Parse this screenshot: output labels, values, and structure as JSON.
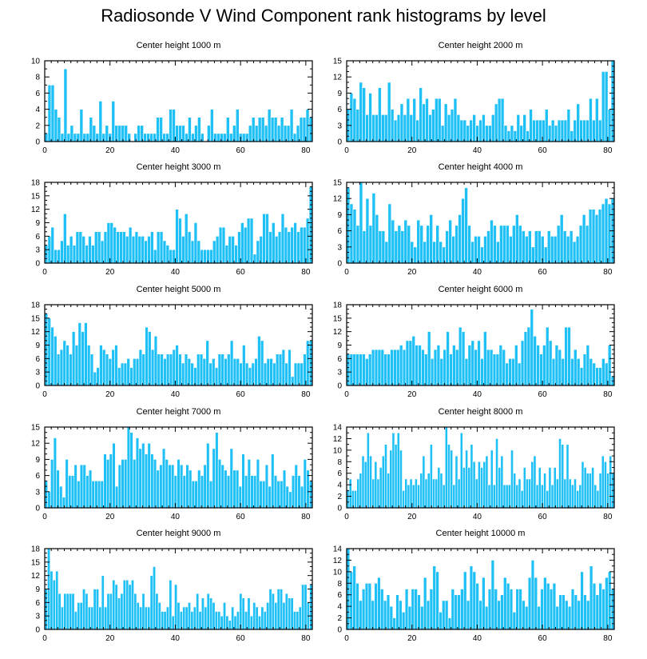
{
  "title": "Radiosonde V Wind Component rank histograms by level",
  "colors": {
    "bar": "#1ec0f5",
    "bar_edge": "#ffffff",
    "frame": "#000000",
    "background": "#ffffff"
  },
  "chart_data": [
    {
      "type": "bar",
      "title": "Center height 1000 m",
      "xlim": [
        0,
        82
      ],
      "ylim": [
        0,
        10
      ],
      "xticks": [
        0,
        20,
        40,
        60,
        80
      ],
      "yticks": [
        0,
        2,
        4,
        6,
        8,
        10
      ],
      "values": [
        1,
        7,
        7,
        4,
        3,
        1,
        9,
        1,
        2,
        1,
        1,
        4,
        1,
        1,
        3,
        2,
        1,
        5,
        1,
        2,
        1,
        5,
        2,
        2,
        2,
        2,
        1,
        0,
        1,
        2,
        2,
        1,
        1,
        1,
        1,
        3,
        3,
        1,
        1,
        4,
        4,
        2,
        2,
        2,
        1,
        3,
        1,
        2,
        3,
        1,
        0,
        2,
        4,
        1,
        1,
        1,
        1,
        3,
        1,
        2,
        4,
        1,
        1,
        1,
        2,
        3,
        2,
        3,
        3,
        2,
        4,
        3,
        3,
        2,
        3,
        2,
        2,
        4,
        1,
        2,
        3,
        3,
        4,
        3
      ],
      "grid": false,
      "legend": "none"
    },
    {
      "type": "bar",
      "title": "Center height 2000 m",
      "xlim": [
        0,
        82
      ],
      "ylim": [
        0,
        15
      ],
      "xticks": [
        0,
        20,
        40,
        60,
        80
      ],
      "yticks": [
        0,
        3,
        6,
        9,
        12,
        15
      ],
      "values": [
        6,
        9,
        8,
        6,
        11,
        10,
        5,
        9,
        5,
        5,
        10,
        5,
        5,
        11,
        6,
        4,
        5,
        7,
        5,
        8,
        5,
        8,
        4,
        10,
        7,
        8,
        5,
        6,
        8,
        8,
        3,
        7,
        5,
        6,
        8,
        5,
        4,
        4,
        3,
        4,
        5,
        3,
        4,
        5,
        3,
        3,
        5,
        7,
        8,
        8,
        3,
        2,
        3,
        2,
        5,
        3,
        5,
        2,
        6,
        4,
        4,
        4,
        4,
        6,
        3,
        4,
        3,
        4,
        4,
        4,
        6,
        2,
        4,
        7,
        4,
        4,
        4,
        8,
        4,
        8,
        4,
        13,
        13,
        6,
        15
      ],
      "grid": false,
      "legend": "none"
    },
    {
      "type": "bar",
      "title": "Center height 3000 m",
      "xlim": [
        0,
        82
      ],
      "ylim": [
        0,
        18
      ],
      "xticks": [
        0,
        20,
        40,
        60,
        80
      ],
      "yticks": [
        0,
        3,
        6,
        9,
        12,
        15,
        18
      ],
      "values": [
        4,
        6,
        8,
        3,
        3,
        5,
        11,
        4,
        6,
        4,
        7,
        7,
        6,
        4,
        6,
        4,
        7,
        7,
        5,
        7,
        9,
        9,
        8,
        7,
        7,
        7,
        6,
        8,
        6,
        7,
        6,
        6,
        5,
        6,
        7,
        3,
        7,
        7,
        5,
        4,
        3,
        3,
        12,
        10,
        6,
        11,
        7,
        5,
        9,
        5,
        3,
        3,
        3,
        3,
        5,
        6,
        8,
        8,
        4,
        6,
        6,
        4,
        7,
        9,
        8,
        10,
        10,
        2,
        5,
        6,
        11,
        11,
        7,
        9,
        6,
        7,
        11,
        8,
        7,
        8,
        9,
        7,
        8,
        8,
        10,
        17
      ],
      "grid": false,
      "legend": "none"
    },
    {
      "type": "bar",
      "title": "Center height 4000 m",
      "xlim": [
        0,
        82
      ],
      "ylim": [
        0,
        15
      ],
      "xticks": [
        0,
        20,
        40,
        60,
        80
      ],
      "yticks": [
        0,
        3,
        6,
        9,
        12,
        15
      ],
      "values": [
        14,
        11,
        10,
        7,
        15,
        6,
        12,
        7,
        13,
        9,
        6,
        6,
        4,
        11,
        8,
        6,
        7,
        6,
        8,
        7,
        4,
        3,
        8,
        7,
        4,
        7,
        9,
        4,
        7,
        4,
        3,
        6,
        8,
        5,
        7,
        9,
        12,
        14,
        7,
        4,
        5,
        5,
        3,
        5,
        6,
        8,
        7,
        4,
        7,
        7,
        7,
        5,
        7,
        9,
        7,
        6,
        5,
        6,
        3,
        6,
        6,
        5,
        3,
        6,
        5,
        5,
        7,
        9,
        6,
        5,
        6,
        4,
        5,
        7,
        9,
        7,
        10,
        10,
        9,
        10,
        11,
        12,
        11,
        12
      ],
      "grid": false,
      "legend": "none"
    },
    {
      "type": "bar",
      "title": "Center height 5000 m",
      "xlim": [
        0,
        82
      ],
      "ylim": [
        0,
        18
      ],
      "xticks": [
        0,
        20,
        40,
        60,
        80
      ],
      "yticks": [
        0,
        3,
        6,
        9,
        12,
        15,
        18
      ],
      "values": [
        16,
        15,
        13,
        11,
        7,
        8,
        10,
        9,
        7,
        12,
        9,
        14,
        12,
        14,
        9,
        7,
        3,
        4,
        9,
        8,
        7,
        6,
        8,
        9,
        4,
        5,
        5,
        6,
        4,
        6,
        6,
        8,
        7,
        13,
        12,
        8,
        11,
        7,
        7,
        6,
        7,
        7,
        8,
        9,
        7,
        5,
        7,
        6,
        5,
        4,
        7,
        7,
        6,
        10,
        5,
        6,
        4,
        7,
        7,
        6,
        7,
        10,
        6,
        6,
        5,
        9,
        5,
        4,
        5,
        6,
        11,
        10,
        5,
        6,
        6,
        5,
        7,
        7,
        8,
        5,
        8,
        2,
        5,
        5,
        5,
        7,
        10,
        10
      ],
      "grid": false,
      "legend": "none"
    },
    {
      "type": "bar",
      "title": "Center height 6000 m",
      "xlim": [
        0,
        82
      ],
      "ylim": [
        0,
        18
      ],
      "xticks": [
        0,
        20,
        40,
        60,
        80
      ],
      "yticks": [
        0,
        3,
        6,
        9,
        12,
        15,
        18
      ],
      "values": [
        7,
        7,
        7,
        7,
        7,
        7,
        6,
        7,
        8,
        8,
        8,
        8,
        7,
        7,
        8,
        8,
        8,
        9,
        8,
        10,
        10,
        11,
        9,
        9,
        8,
        7,
        12,
        6,
        8,
        9,
        6,
        8,
        12,
        7,
        9,
        8,
        13,
        12,
        6,
        9,
        10,
        8,
        10,
        6,
        12,
        8,
        8,
        7,
        7,
        9,
        8,
        5,
        6,
        6,
        9,
        5,
        10,
        12,
        13,
        17,
        11,
        9,
        7,
        9,
        13,
        10,
        6,
        9,
        8,
        6,
        13,
        13,
        6,
        8,
        6,
        4,
        7,
        9,
        6,
        5,
        4,
        4,
        6,
        5,
        9,
        2
      ],
      "grid": false,
      "legend": "none"
    },
    {
      "type": "bar",
      "title": "Center height 7000 m",
      "xlim": [
        0,
        82
      ],
      "ylim": [
        0,
        15
      ],
      "xticks": [
        0,
        20,
        40,
        60,
        80
      ],
      "yticks": [
        0,
        3,
        6,
        9,
        12,
        15
      ],
      "values": [
        5,
        3,
        9,
        13,
        7,
        4,
        2,
        9,
        6,
        6,
        8,
        5,
        8,
        8,
        6,
        7,
        5,
        5,
        5,
        5,
        10,
        9,
        10,
        12,
        4,
        8,
        9,
        9,
        15,
        14,
        9,
        13,
        11,
        12,
        10,
        12,
        10,
        9,
        7,
        8,
        11,
        9,
        8,
        8,
        6,
        9,
        8,
        6,
        8,
        7,
        5,
        5,
        7,
        6,
        8,
        12,
        5,
        11,
        14,
        9,
        8,
        7,
        6,
        11,
        7,
        7,
        4,
        10,
        6,
        9,
        6,
        6,
        9,
        5,
        5,
        8,
        4,
        10,
        6,
        5,
        5,
        7,
        4,
        3,
        6,
        8,
        6,
        4,
        9,
        7,
        5
      ],
      "grid": false,
      "legend": "none"
    },
    {
      "type": "bar",
      "title": "Center height 8000 m",
      "xlim": [
        0,
        82
      ],
      "ylim": [
        0,
        14
      ],
      "xticks": [
        0,
        20,
        40,
        60,
        80
      ],
      "yticks": [
        0,
        2,
        4,
        6,
        8,
        10,
        12,
        14
      ],
      "values": [
        3,
        5,
        3,
        3,
        5,
        6,
        9,
        8,
        13,
        9,
        5,
        8,
        5,
        7,
        9,
        11,
        6,
        10,
        13,
        11,
        13,
        10,
        3,
        5,
        4,
        5,
        4,
        5,
        4,
        6,
        9,
        5,
        6,
        11,
        5,
        5,
        7,
        6,
        4,
        14,
        11,
        10,
        4,
        9,
        5,
        13,
        7,
        10,
        7,
        11,
        8,
        5,
        8,
        7,
        8,
        9,
        4,
        10,
        4,
        12,
        7,
        9,
        4,
        4,
        4,
        10,
        6,
        4,
        5,
        3,
        7,
        5,
        5,
        8,
        9,
        4,
        7,
        4,
        6,
        3,
        7,
        4,
        7,
        5,
        12,
        11,
        5,
        11,
        5,
        4,
        5,
        3,
        4,
        8,
        7,
        6,
        6,
        7,
        4,
        3,
        6,
        9,
        8,
        6,
        9,
        6
      ],
      "grid": false,
      "legend": "none"
    },
    {
      "type": "bar",
      "title": "Center height 9000 m",
      "xlim": [
        0,
        82
      ],
      "ylim": [
        0,
        18
      ],
      "xticks": [
        0,
        20,
        40,
        60,
        80
      ],
      "yticks": [
        0,
        3,
        6,
        9,
        12,
        15,
        18
      ],
      "values": [
        9,
        18,
        13,
        11,
        13,
        8,
        5,
        8,
        8,
        8,
        8,
        4,
        6,
        6,
        9,
        8,
        5,
        5,
        9,
        9,
        5,
        12,
        5,
        8,
        8,
        11,
        10,
        7,
        8,
        11,
        11,
        10,
        11,
        8,
        6,
        5,
        8,
        5,
        5,
        12,
        14,
        8,
        6,
        4,
        4,
        5,
        11,
        3,
        10,
        6,
        4,
        5,
        5,
        6,
        4,
        5,
        8,
        4,
        7,
        5,
        8,
        7,
        6,
        4,
        4,
        3,
        6,
        3,
        2,
        5,
        3,
        4,
        8,
        7,
        4,
        7,
        3,
        6,
        5,
        3,
        5,
        4,
        6,
        9,
        8,
        6,
        9,
        9,
        6,
        8,
        7,
        7,
        4,
        4,
        5,
        10,
        10,
        6,
        10
      ],
      "grid": false,
      "legend": "none"
    },
    {
      "type": "bar",
      "title": "Center height 10000 m",
      "xlim": [
        0,
        82
      ],
      "ylim": [
        0,
        14
      ],
      "xticks": [
        0,
        20,
        40,
        60,
        80
      ],
      "yticks": [
        0,
        2,
        4,
        6,
        8,
        10,
        12,
        14
      ],
      "values": [
        14,
        10,
        11,
        8,
        5,
        7,
        8,
        8,
        5,
        8,
        9,
        7,
        5,
        6,
        4,
        2,
        6,
        5,
        3,
        7,
        4,
        7,
        7,
        6,
        4,
        9,
        5,
        7,
        11,
        10,
        3,
        5,
        5,
        2,
        7,
        6,
        6,
        7,
        10,
        5,
        11,
        10,
        8,
        5,
        9,
        4,
        7,
        12,
        7,
        5,
        6,
        9,
        8,
        7,
        3,
        7,
        7,
        5,
        4,
        9,
        12,
        9,
        4,
        7,
        9,
        8,
        7,
        8,
        4,
        6,
        6,
        5,
        4,
        7,
        6,
        5,
        10,
        6,
        5,
        11,
        8,
        6,
        8,
        7,
        9,
        10,
        7
      ],
      "grid": false,
      "legend": "none"
    }
  ]
}
